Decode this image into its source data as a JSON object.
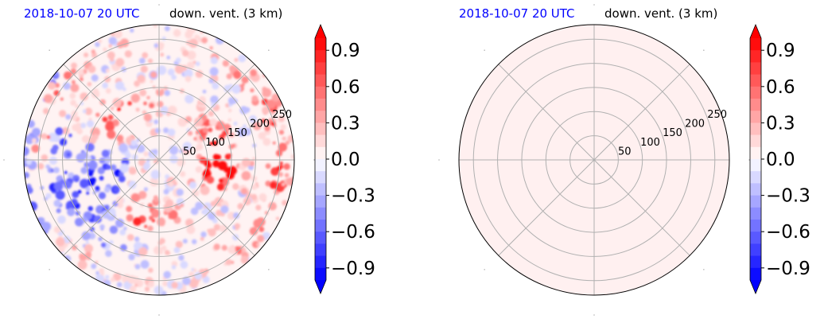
{
  "colors": {
    "title_time": "#0000ff",
    "title_var": "#000000",
    "grid": "#b0b0b0",
    "neutral_fill": "#fff0f0"
  },
  "chart_data": [
    {
      "type": "heatmap",
      "projection": "polar",
      "title_time": "2018-10-07 20 UTC",
      "title_var": "down. vent. (3 km)",
      "radial_ticks": [
        "50",
        "100",
        "150",
        "200",
        "250"
      ],
      "radial_tick_values": [
        50,
        100,
        150,
        200,
        250
      ],
      "rmax": 280,
      "angular_grid_deg": [
        0,
        45,
        90,
        135,
        180,
        225,
        270,
        315
      ],
      "field_description": "mixed positive and negative values",
      "colorbar": {
        "vmin": -1.0,
        "vmax": 1.0,
        "levels": 20,
        "extend": "both",
        "colormap": "bwr",
        "tick_values": [
          0.9,
          0.6,
          0.3,
          0.0,
          -0.3,
          -0.6,
          -0.9
        ],
        "tick_labels": [
          "0.9",
          "0.6",
          "0.3",
          "0.0",
          "−0.3",
          "−0.6",
          "−0.9"
        ]
      },
      "grid": true
    },
    {
      "type": "heatmap",
      "projection": "polar",
      "title_time": "2018-10-07 20 UTC",
      "title_var": "down. vent. (3 km)",
      "radial_ticks": [
        "50",
        "100",
        "150",
        "200",
        "250"
      ],
      "radial_tick_values": [
        50,
        100,
        150,
        200,
        250
      ],
      "rmax": 280,
      "angular_grid_deg": [
        0,
        45,
        90,
        135,
        180,
        225,
        270,
        315
      ],
      "field_description": "uniform near-zero field",
      "colorbar": {
        "vmin": -1.0,
        "vmax": 1.0,
        "levels": 20,
        "extend": "both",
        "colormap": "bwr",
        "tick_values": [
          0.9,
          0.6,
          0.3,
          0.0,
          -0.3,
          -0.6,
          -0.9
        ],
        "tick_labels": [
          "0.9",
          "0.6",
          "0.3",
          "0.0",
          "−0.3",
          "−0.6",
          "−0.9"
        ]
      },
      "grid": true
    }
  ]
}
